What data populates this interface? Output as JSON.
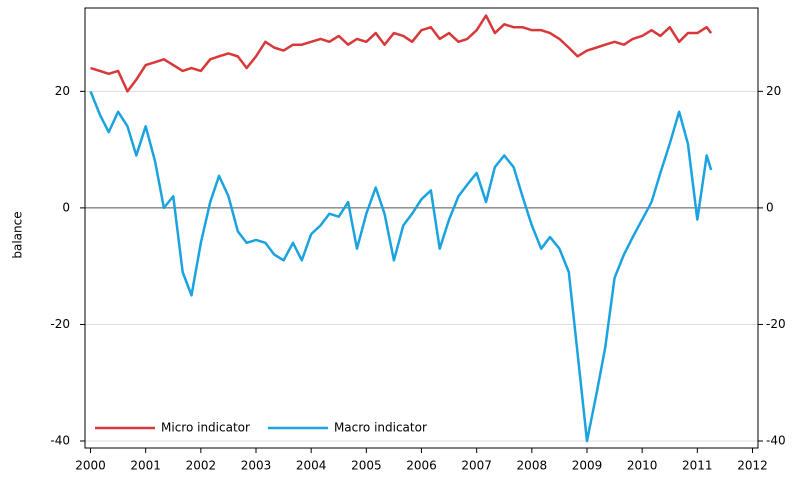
{
  "chart_data": {
    "type": "line",
    "y_label": "balance",
    "xlim": [
      1999.9,
      2012.1
    ],
    "xticks": [
      2000,
      2001,
      2002,
      2003,
      2004,
      2005,
      2006,
      2007,
      2008,
      2009,
      2010,
      2011,
      2012
    ],
    "ylim": [
      -41.2,
      34.3
    ],
    "yticks": [
      -40,
      -20,
      0,
      20
    ],
    "grid": true,
    "legend": "lower left",
    "x": [
      2000,
      2000.17,
      2000.33,
      2000.5,
      2000.67,
      2000.83,
      2001,
      2001.17,
      2001.33,
      2001.5,
      2001.67,
      2001.83,
      2002,
      2002.17,
      2002.33,
      2002.5,
      2002.67,
      2002.83,
      2003,
      2003.17,
      2003.33,
      2003.5,
      2003.67,
      2003.83,
      2004,
      2004.17,
      2004.33,
      2004.5,
      2004.67,
      2004.83,
      2005,
      2005.17,
      2005.33,
      2005.5,
      2005.67,
      2005.83,
      2006,
      2006.17,
      2006.33,
      2006.5,
      2006.67,
      2006.83,
      2007,
      2007.17,
      2007.33,
      2007.5,
      2007.67,
      2007.83,
      2008,
      2008.17,
      2008.33,
      2008.5,
      2008.67,
      2008.83,
      2009,
      2009.17,
      2009.33,
      2009.5,
      2009.67,
      2009.83,
      2010,
      2010.17,
      2010.33,
      2010.5,
      2010.67,
      2010.83,
      2011,
      2011.17,
      2011.25
    ],
    "series": [
      {
        "name": "Micro indicator",
        "color": "#d9383a",
        "values": [
          24,
          23.5,
          23,
          23.5,
          20,
          22,
          24.5,
          25,
          25.5,
          24.5,
          23.5,
          24,
          23.5,
          25.5,
          26,
          26.5,
          26,
          24,
          26,
          28.5,
          27.5,
          27,
          28,
          28,
          28.5,
          29,
          28.5,
          29.5,
          28,
          29,
          28.5,
          30,
          28,
          30,
          29.5,
          28.5,
          30.5,
          31,
          29,
          30,
          28.5,
          29,
          30.5,
          33,
          30,
          31.5,
          31,
          31,
          30.5,
          30.5,
          30,
          29,
          27.5,
          26,
          27,
          27.5,
          28,
          28.5,
          28,
          29,
          29.5,
          30.5,
          29.5,
          31,
          28.5,
          30,
          30,
          31,
          30
        ]
      },
      {
        "name": "Macro indicator",
        "color": "#1aa3e0",
        "values": [
          20,
          16,
          13,
          16.5,
          14,
          9,
          14,
          8,
          0,
          2,
          -11,
          -15,
          -6,
          1,
          5.5,
          2,
          -4,
          -6,
          -5.5,
          -6,
          -8,
          -9,
          -6,
          -9,
          -4.5,
          -3,
          -1,
          -1.5,
          1,
          -7,
          -1,
          3.5,
          -1,
          -9,
          -3,
          -1,
          1.5,
          3,
          -7,
          -2,
          2,
          4,
          6,
          1,
          7,
          9,
          7,
          2,
          -3,
          -7,
          -5,
          -7,
          -11,
          -25,
          -40,
          -32,
          -24,
          -12,
          -8,
          -5,
          -2,
          1,
          6,
          11,
          16.5,
          11,
          -2,
          9,
          6.5
        ]
      }
    ]
  }
}
